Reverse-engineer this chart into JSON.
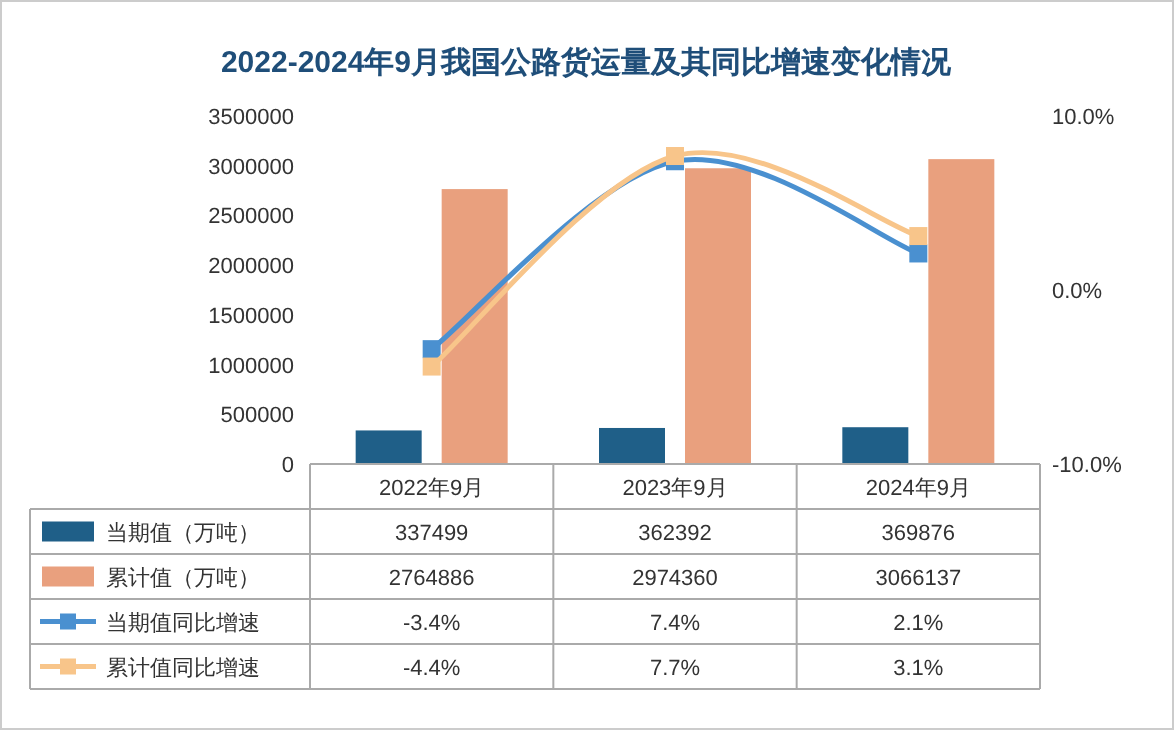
{
  "chart_data": {
    "type": "bar",
    "title": "2022-2024年9月我国公路货运量及其同比增速变化情况",
    "categories": [
      "2022年9月",
      "2023年9月",
      "2024年9月"
    ],
    "series": [
      {
        "name": "当期值（万吨）",
        "color": "#1f5f88",
        "values": [
          337499,
          362392,
          369876
        ],
        "value_labels": [
          "337499",
          "362392",
          "369876"
        ]
      },
      {
        "name": "累计值（万吨）",
        "color": "#e9a07e",
        "values": [
          2764886,
          2974360,
          3066137
        ],
        "value_labels": [
          "2764886",
          "2974360",
          "3066137"
        ]
      },
      {
        "name": "当期值同比增速",
        "type": "line",
        "axis": "y2",
        "color": "#4a90d0",
        "values": [
          -3.4,
          7.4,
          2.1
        ],
        "value_labels": [
          "-3.4%",
          "7.4%",
          "2.1%"
        ]
      },
      {
        "name": "累计值同比增速",
        "type": "line",
        "axis": "y2",
        "color": "#f8c58a",
        "values": [
          -4.4,
          7.7,
          3.1
        ],
        "value_labels": [
          "-4.4%",
          "7.7%",
          "3.1%"
        ]
      }
    ],
    "ylim": [
      0,
      3500000
    ],
    "yticks": [
      0,
      500000,
      1000000,
      1500000,
      2000000,
      2500000,
      3000000,
      3500000
    ],
    "y2lim": [
      -10,
      10
    ],
    "y2ticks": [
      {
        "value": -10,
        "label": "-10.0%"
      },
      {
        "value": 0,
        "label": "0.0%"
      },
      {
        "value": 10,
        "label": "10.0%"
      }
    ],
    "marker": "square",
    "legend": "bottom"
  }
}
